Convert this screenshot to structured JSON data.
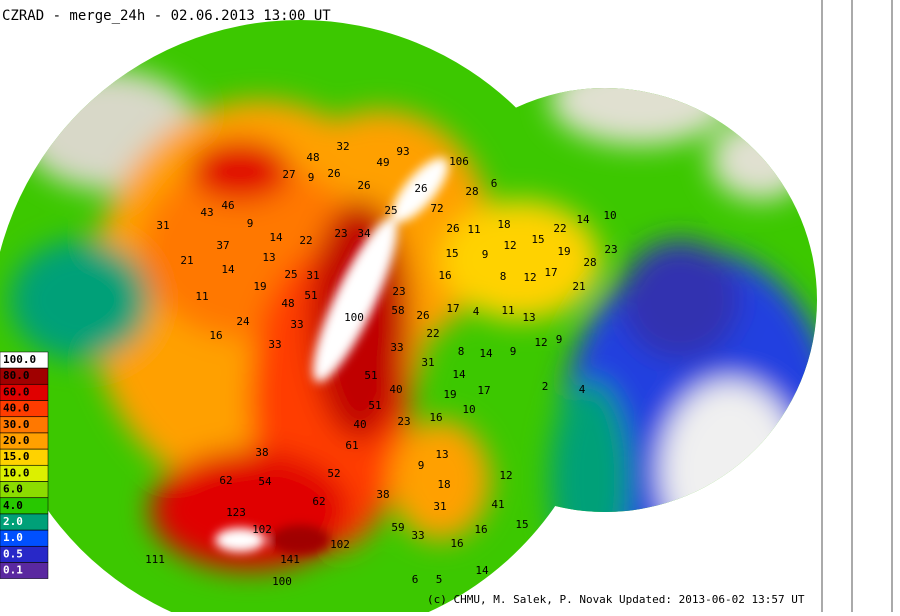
{
  "header": {
    "title": "CZRAD - merge_24h - 02.06.2013 13:00 UT"
  },
  "legend": [
    {
      "label": "100.0",
      "color": "#ffffff"
    },
    {
      "label": "80.0",
      "color": "#a00000"
    },
    {
      "label": "60.0",
      "color": "#e00000"
    },
    {
      "label": "40.0",
      "color": "#ff3c00"
    },
    {
      "label": "30.0",
      "color": "#ff7800"
    },
    {
      "label": "20.0",
      "color": "#ffa000"
    },
    {
      "label": "15.0",
      "color": "#ffd200"
    },
    {
      "label": "10.0",
      "color": "#dcf000"
    },
    {
      "label": "6.0",
      "color": "#8cdc00"
    },
    {
      "label": "4.0",
      "color": "#28c800"
    },
    {
      "label": "2.0",
      "color": "#00a078"
    },
    {
      "label": "1.0",
      "color": "#0050ff"
    },
    {
      "label": "0.5",
      "color": "#2828c8"
    },
    {
      "label": "0.1",
      "color": "#5a28a0"
    }
  ],
  "gauges": [
    "32",
    "48",
    "93",
    "106",
    "27",
    "9",
    "26",
    "49",
    "6",
    "28",
    "26",
    "26",
    "46",
    "43",
    "31",
    "9",
    "25",
    "72",
    "18",
    "14",
    "10",
    "22",
    "23",
    "34",
    "14",
    "22",
    "37",
    "26",
    "11",
    "15",
    "12",
    "19",
    "28",
    "23",
    "21",
    "14",
    "13",
    "25",
    "31",
    "16",
    "9",
    "15",
    "8",
    "12",
    "17",
    "21",
    "11",
    "19",
    "48",
    "51",
    "23",
    "24",
    "33",
    "58",
    "26",
    "17",
    "4",
    "11",
    "13",
    "16",
    "33",
    "22",
    "33",
    "8",
    "14",
    "9",
    "12",
    "9",
    "31",
    "51",
    "14",
    "17",
    "40",
    "19",
    "2",
    "4",
    "51",
    "23",
    "16",
    "10",
    "40",
    "61",
    "38",
    "9",
    "13",
    "52",
    "62",
    "54",
    "18",
    "12",
    "38",
    "62",
    "31",
    "41",
    "123",
    "102",
    "59",
    "15",
    "16",
    "33",
    "102",
    "16",
    "141",
    "111",
    "14",
    "6",
    "100",
    "5",
    "100"
  ],
  "footer": "(c) CHMU, M. Salek, P. Novak  Updated: 2013-06-02 13:57 UT"
}
